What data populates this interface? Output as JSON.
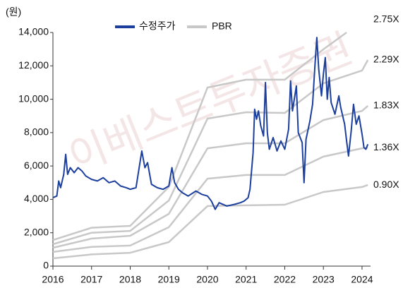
{
  "chart_data": {
    "type": "line",
    "y_label": "(원)",
    "watermark": "이베스트투자증권",
    "xlim": [
      2016,
      2024.22
    ],
    "xticks": [
      2016,
      2017,
      2018,
      2019,
      2020,
      2021,
      2022,
      2023,
      2024
    ],
    "ylim": [
      0,
      14000
    ],
    "yticks": [
      0,
      {
        "value": 2000,
        "label": "2,000"
      },
      {
        "value": 4000,
        "label": "4,000"
      },
      {
        "value": 6000,
        "label": "6,000"
      },
      {
        "value": 8000,
        "label": "8,000"
      },
      {
        "value": 10000,
        "label": "10,000"
      },
      {
        "value": 12000,
        "label": "12,000"
      },
      {
        "value": 14000,
        "label": "14,000"
      }
    ],
    "series": [
      {
        "name": "수정주가",
        "color": "#1c3f9e",
        "x": [
          2016.0,
          2016.1,
          2016.15,
          2016.2,
          2016.28,
          2016.33,
          2016.38,
          2016.45,
          2016.55,
          2016.65,
          2016.75,
          2016.85,
          2017.0,
          2017.15,
          2017.3,
          2017.45,
          2017.6,
          2017.75,
          2017.9,
          2018.0,
          2018.15,
          2018.3,
          2018.38,
          2018.45,
          2018.55,
          2018.7,
          2018.85,
          2019.0,
          2019.08,
          2019.15,
          2019.25,
          2019.35,
          2019.5,
          2019.7,
          2019.85,
          2020.0,
          2020.1,
          2020.2,
          2020.3,
          2020.5,
          2020.7,
          2020.85,
          2020.95,
          2021.05,
          2021.1,
          2021.18,
          2021.22,
          2021.27,
          2021.32,
          2021.38,
          2021.45,
          2021.5,
          2021.55,
          2021.6,
          2021.7,
          2021.8,
          2021.9,
          2022.0,
          2022.1,
          2022.15,
          2022.2,
          2022.3,
          2022.35,
          2022.45,
          2022.5,
          2022.55,
          2022.65,
          2022.72,
          2022.78,
          2022.83,
          2022.88,
          2022.95,
          2023.0,
          2023.05,
          2023.1,
          2023.15,
          2023.2,
          2023.3,
          2023.4,
          2023.45,
          2023.55,
          2023.6,
          2023.65,
          2023.72,
          2023.78,
          2023.85,
          2023.92,
          2024.0,
          2024.05,
          2024.1,
          2024.15
        ],
        "values": [
          4100,
          4200,
          5100,
          4700,
          5500,
          6700,
          5500,
          5900,
          5600,
          5900,
          5700,
          5400,
          5200,
          5100,
          5300,
          5000,
          5100,
          4800,
          4700,
          4600,
          4700,
          6900,
          5900,
          6200,
          4900,
          4700,
          4600,
          4800,
          5900,
          5000,
          4600,
          4400,
          4200,
          4500,
          4300,
          4200,
          3900,
          3400,
          3800,
          3600,
          3700,
          3800,
          3900,
          4100,
          4600,
          6800,
          9400,
          8800,
          9300,
          8400,
          7800,
          11000,
          8000,
          7000,
          7700,
          6900,
          7500,
          7000,
          8200,
          11100,
          9300,
          10800,
          8000,
          7400,
          5000,
          7600,
          8700,
          9700,
          12000,
          13700,
          11800,
          10200,
          11500,
          12500,
          10000,
          11300,
          9800,
          9100,
          10200,
          9500,
          8500,
          7500,
          6600,
          8100,
          9700,
          8500,
          9000,
          7900,
          7100,
          7000,
          7300
        ]
      }
    ],
    "bands": {
      "name": "PBR",
      "color": "#c8c8c8",
      "lines": [
        {
          "label": "2.75X",
          "x": [
            2016,
            2017,
            2018,
            2019,
            2020,
            2021,
            2022,
            2023,
            2023.6
          ],
          "values": [
            1560,
            2300,
            2410,
            4740,
            10700,
            11170,
            11170,
            12990,
            14000
          ]
        },
        {
          "label": "2.29X",
          "x": [
            2016,
            2017,
            2018,
            2019,
            2020,
            2021,
            2022,
            2023,
            2024,
            2024.15
          ],
          "values": [
            1310,
            2000,
            2110,
            3930,
            8840,
            9220,
            9180,
            10950,
            11720,
            12350
          ]
        },
        {
          "label": "1.83X",
          "x": [
            2016,
            2017,
            2018,
            2019,
            2020,
            2021,
            2022,
            2023,
            2024,
            2024.15
          ],
          "values": [
            1100,
            1650,
            1820,
            3130,
            7060,
            7360,
            7360,
            8750,
            9300,
            9600
          ]
        },
        {
          "label": "1.36X",
          "x": [
            2016,
            2017,
            2018,
            2019,
            2020,
            2021,
            2022,
            2023,
            2024,
            2024.15
          ],
          "values": [
            850,
            1150,
            1230,
            2330,
            5240,
            5460,
            5460,
            6560,
            7060,
            7100
          ]
        },
        {
          "label": "0.90X",
          "x": [
            2016,
            2017,
            2018,
            2019,
            2020,
            2021,
            2022,
            2023,
            2024,
            2024.15
          ],
          "values": [
            465,
            700,
            800,
            1440,
            3600,
            3640,
            3680,
            4440,
            4740,
            4860
          ]
        }
      ]
    }
  }
}
